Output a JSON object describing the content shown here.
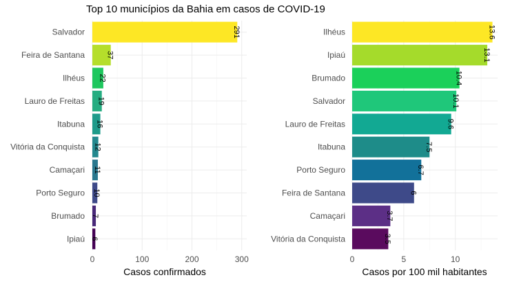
{
  "title": "Top 10 municípios da Bahia em casos de COVID-19",
  "chart_data": [
    {
      "type": "bar",
      "orientation": "horizontal",
      "categories": [
        "Salvador",
        "Feira de Santana",
        "Ilhéus",
        "Lauro de Freitas",
        "Itabuna",
        "Vitória da Conquista",
        "Camaçari",
        "Porto Seguro",
        "Brumado",
        "Ipiaú"
      ],
      "values": [
        291,
        37,
        22,
        19,
        16,
        12,
        11,
        10,
        7,
        6
      ],
      "labels": [
        "291",
        "37",
        "22",
        "19",
        "16",
        "12",
        "11",
        "10",
        "7",
        "6"
      ],
      "colors": [
        "#FDE725",
        "#B5DE2B",
        "#1FC75E",
        "#26AD81",
        "#1E9B8A",
        "#23888E",
        "#2A788E",
        "#3E4A89",
        "#482878",
        "#440154"
      ],
      "xlabel": "Casos confirmados",
      "xlim": [
        0,
        310
      ],
      "xticks": [
        0,
        100,
        200,
        300
      ],
      "grid": true
    },
    {
      "type": "bar",
      "orientation": "horizontal",
      "categories": [
        "Ilhéus",
        "Ipiaú",
        "Brumado",
        "Salvador",
        "Lauro de Freitas",
        "Itabuna",
        "Porto Seguro",
        "Feira de Santana",
        "Camaçari",
        "Vitória da Conquista"
      ],
      "values": [
        13.6,
        13.1,
        10.4,
        10.1,
        9.6,
        7.5,
        6.7,
        6,
        3.7,
        3.5
      ],
      "labels": [
        "13.6",
        "13.1",
        "10.4",
        "10.1",
        "9.6",
        "7.5",
        "6.7",
        "6",
        "3.7",
        "3.5"
      ],
      "colors": [
        "#FDE725",
        "#A5DB2B",
        "#1BD05A",
        "#1FC77A",
        "#12A993",
        "#1E8C89",
        "#12719A",
        "#3E4A89",
        "#5C2F86",
        "#5A0B5E"
      ],
      "xlabel": "Casos por 100 mil habitantes",
      "xlim": [
        0,
        14.1
      ],
      "xticks": [
        0,
        5,
        10
      ],
      "grid": true
    }
  ]
}
